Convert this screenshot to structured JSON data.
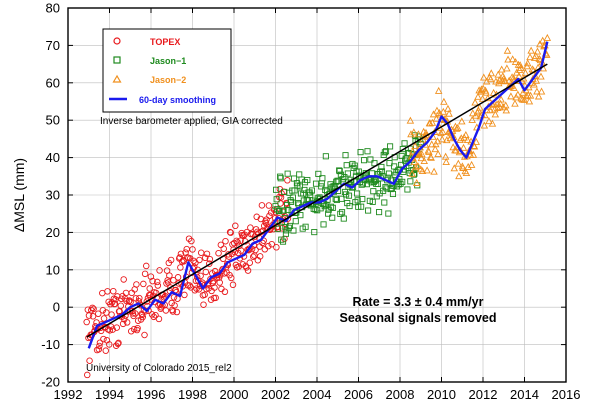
{
  "chart_data": {
    "type": "scatter",
    "ylabel": "ΔMSL (mm)",
    "xlabel": "",
    "xlim": [
      1992,
      2016
    ],
    "ylim": [
      -20,
      80
    ],
    "x_ticks": [
      1992,
      1994,
      1996,
      1998,
      2000,
      2002,
      2004,
      2006,
      2008,
      2010,
      2012,
      2014,
      2016
    ],
    "y_ticks": [
      -20,
      -10,
      0,
      10,
      20,
      30,
      40,
      50,
      60,
      70,
      80
    ],
    "grid": true,
    "legend_position": "top-left",
    "series": [
      {
        "name": "TOPEX",
        "marker": "circle",
        "color": "#e8191c",
        "x_range": [
          1992.9,
          2002.6
        ],
        "trend": [
          [
            1992.9,
            -7
          ],
          [
            1994.0,
            -3
          ],
          [
            1995.0,
            0
          ],
          [
            1996.0,
            2
          ],
          [
            1997.0,
            5
          ],
          [
            1997.8,
            12
          ],
          [
            1998.4,
            4
          ],
          [
            1999.0,
            9
          ],
          [
            2000.0,
            14
          ],
          [
            2001.0,
            18
          ],
          [
            2002.0,
            24
          ],
          [
            2002.6,
            25
          ]
        ]
      },
      {
        "name": "Jason−1",
        "marker": "square",
        "color": "#1e8a1e",
        "x_range": [
          2002.0,
          2009.0
        ],
        "trend": [
          [
            2002.0,
            24
          ],
          [
            2003.0,
            27
          ],
          [
            2004.0,
            29
          ],
          [
            2005.0,
            32
          ],
          [
            2006.0,
            33
          ],
          [
            2007.0,
            34
          ],
          [
            2008.0,
            36
          ],
          [
            2009.0,
            40
          ]
        ]
      },
      {
        "name": "Jason−2",
        "marker": "triangle",
        "color": "#f0901e",
        "x_range": [
          2008.5,
          2015.1
        ],
        "trend": [
          [
            2008.5,
            40
          ],
          [
            2009.5,
            44
          ],
          [
            2010.0,
            50
          ],
          [
            2010.6,
            46
          ],
          [
            2011.0,
            40
          ],
          [
            2011.5,
            45
          ],
          [
            2012.0,
            55
          ],
          [
            2013.0,
            58
          ],
          [
            2013.5,
            62
          ],
          [
            2014.0,
            59
          ],
          [
            2014.6,
            63
          ],
          [
            2015.1,
            70
          ]
        ]
      },
      {
        "name": "60-day smoothing",
        "marker": "line",
        "color": "#1a1aee",
        "values": [
          [
            1993.0,
            -11
          ],
          [
            1993.4,
            -5
          ],
          [
            1993.8,
            -4
          ],
          [
            1994.2,
            -3
          ],
          [
            1994.6,
            -2
          ],
          [
            1995.0,
            0
          ],
          [
            1995.4,
            1
          ],
          [
            1995.8,
            -1
          ],
          [
            1996.2,
            2
          ],
          [
            1996.6,
            1
          ],
          [
            1997.0,
            4
          ],
          [
            1997.4,
            3
          ],
          [
            1997.8,
            12
          ],
          [
            1998.1,
            9
          ],
          [
            1998.5,
            5
          ],
          [
            1998.9,
            8
          ],
          [
            1999.3,
            9
          ],
          [
            1999.7,
            12
          ],
          [
            2000.1,
            13
          ],
          [
            2000.5,
            14
          ],
          [
            2000.9,
            17
          ],
          [
            2001.3,
            18
          ],
          [
            2001.7,
            21
          ],
          [
            2002.1,
            24
          ],
          [
            2002.5,
            23
          ],
          [
            2002.9,
            26
          ],
          [
            2003.3,
            27
          ],
          [
            2003.7,
            28
          ],
          [
            2004.1,
            28
          ],
          [
            2004.5,
            29
          ],
          [
            2004.9,
            31
          ],
          [
            2005.3,
            33
          ],
          [
            2005.7,
            32
          ],
          [
            2006.1,
            34
          ],
          [
            2006.5,
            35
          ],
          [
            2006.9,
            35
          ],
          [
            2007.3,
            34
          ],
          [
            2007.7,
            33
          ],
          [
            2008.1,
            37
          ],
          [
            2008.5,
            39
          ],
          [
            2008.9,
            42
          ],
          [
            2009.3,
            44
          ],
          [
            2009.7,
            47
          ],
          [
            2010.0,
            51
          ],
          [
            2010.3,
            49
          ],
          [
            2010.6,
            45
          ],
          [
            2010.9,
            42
          ],
          [
            2011.2,
            40
          ],
          [
            2011.5,
            44
          ],
          [
            2011.8,
            48
          ],
          [
            2012.1,
            53
          ],
          [
            2012.5,
            55
          ],
          [
            2012.9,
            57
          ],
          [
            2013.3,
            59
          ],
          [
            2013.7,
            61
          ],
          [
            2014.0,
            58
          ],
          [
            2014.4,
            61
          ],
          [
            2014.8,
            64
          ],
          [
            2015.1,
            71
          ]
        ]
      }
    ],
    "trend_line": {
      "x": [
        1992.9,
        2015.1
      ],
      "y": [
        -8,
        65
      ],
      "color": "#000000"
    },
    "annotations": {
      "rate": "Rate = 3.3 ± 0.4 mm/yr",
      "seasonal": "Seasonal signals removed",
      "inverse": "Inverse barometer applied, GIA corrected",
      "source": "University of Colorado 2015_rel2"
    }
  }
}
